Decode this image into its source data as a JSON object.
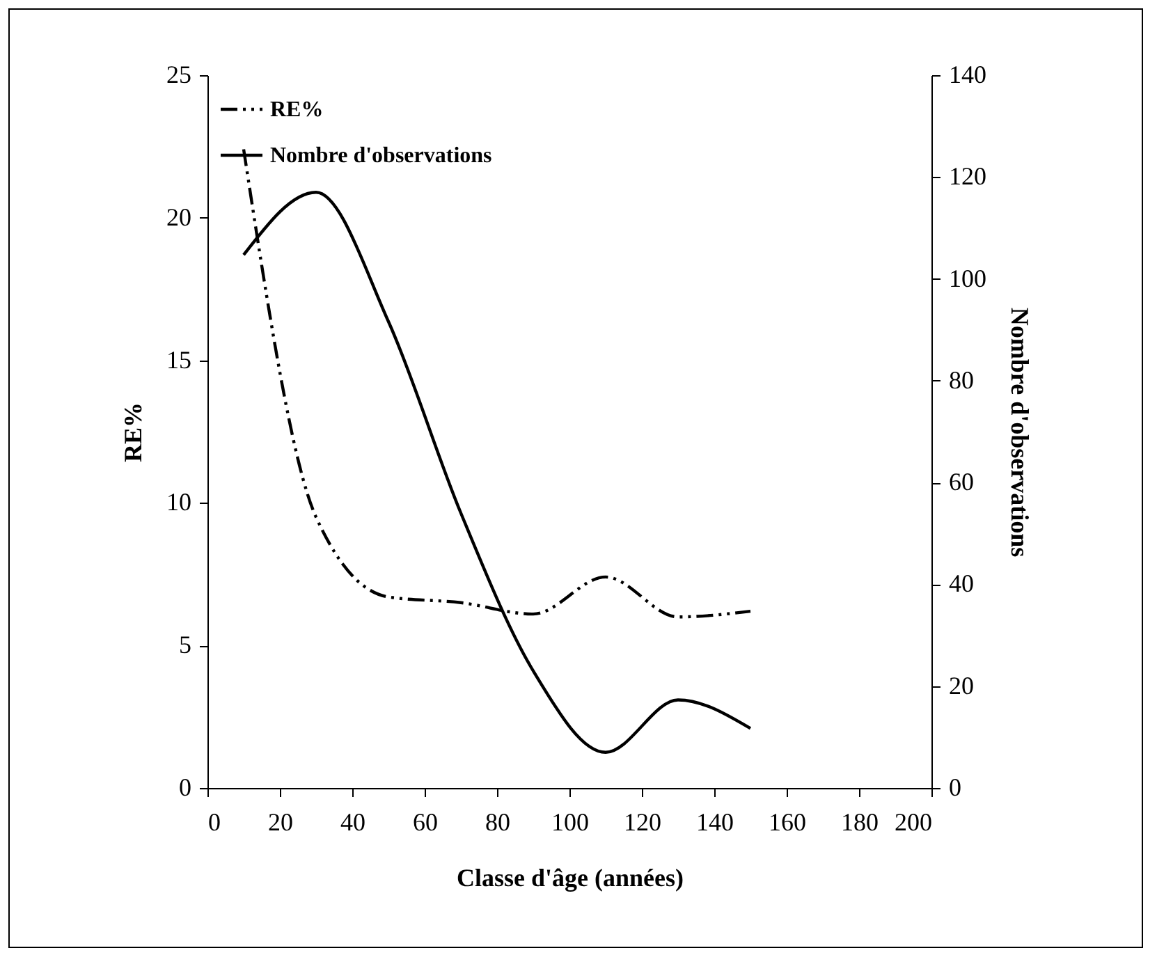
{
  "chart_data": {
    "type": "line",
    "xlabel": "Classe d'âge (années)",
    "ylabel": "RE%",
    "y2label": "Nombre d'observations",
    "x": [
      10,
      30,
      50,
      70,
      90,
      110,
      130,
      150
    ],
    "series": [
      {
        "name": "RE%",
        "color": "#000000",
        "line_style": "dashed",
        "values": [
          22.4,
          9.5,
          6.7,
          6.5,
          6.1,
          7.4,
          6.0,
          6.2
        ]
      },
      {
        "name": "Nombre d'observations",
        "color": "#000000",
        "line_style": "solid",
        "axis": "y2",
        "values": [
          104.7,
          117,
          91.6,
          54,
          23,
          7,
          17.3,
          11.7
        ]
      }
    ],
    "xlim": [
      0,
      200
    ],
    "xticks": [
      0,
      20,
      40,
      60,
      80,
      100,
      120,
      140,
      160,
      180,
      200
    ],
    "ylim": [
      0,
      25
    ],
    "yticks": [
      0,
      5,
      10,
      15,
      20,
      25
    ],
    "y2lim": [
      0,
      140
    ],
    "y2ticks": [
      0,
      20,
      40,
      60,
      80,
      100,
      120,
      140
    ],
    "grid": false,
    "legend": "top left",
    "marker": "none"
  }
}
